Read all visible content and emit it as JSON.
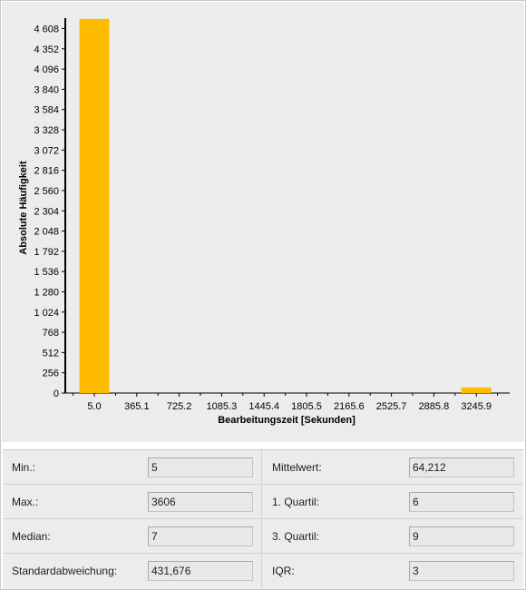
{
  "chart_data": {
    "type": "bar",
    "title": "",
    "xlabel": "Bearbeitungszeit [Sekunden]",
    "ylabel": "Absolute Häufigkeit",
    "categories": [
      "5.0",
      "365.1",
      "725.2",
      "1085.3",
      "1445.4",
      "1805.5",
      "2165.6",
      "2525.7",
      "2885.8",
      "3245.9"
    ],
    "values": [
      4730,
      0,
      0,
      0,
      0,
      0,
      0,
      0,
      0,
      70
    ],
    "ylim": [
      0,
      4740
    ],
    "yticks": [
      "0",
      "256",
      "512",
      "768",
      "1 024",
      "1 280",
      "1 536",
      "1 792",
      "2 048",
      "2 304",
      "2 560",
      "2 816",
      "3 072",
      "3 328",
      "3 584",
      "3 840",
      "4 096",
      "4 352",
      "4 608"
    ],
    "bar_color": "#ffbb00",
    "grid": false
  },
  "stats": [
    {
      "label": "Min.:",
      "value": "5"
    },
    {
      "label": "Mittelwert:",
      "value": "64,212"
    },
    {
      "label": "Max.:",
      "value": "3606"
    },
    {
      "label": "1. Quartil:",
      "value": "6"
    },
    {
      "label": "Median:",
      "value": "7"
    },
    {
      "label": "3. Quartil:",
      "value": "9"
    },
    {
      "label": "Standardabweichung:",
      "value": "431,676"
    },
    {
      "label": "IQR:",
      "value": "3"
    }
  ]
}
